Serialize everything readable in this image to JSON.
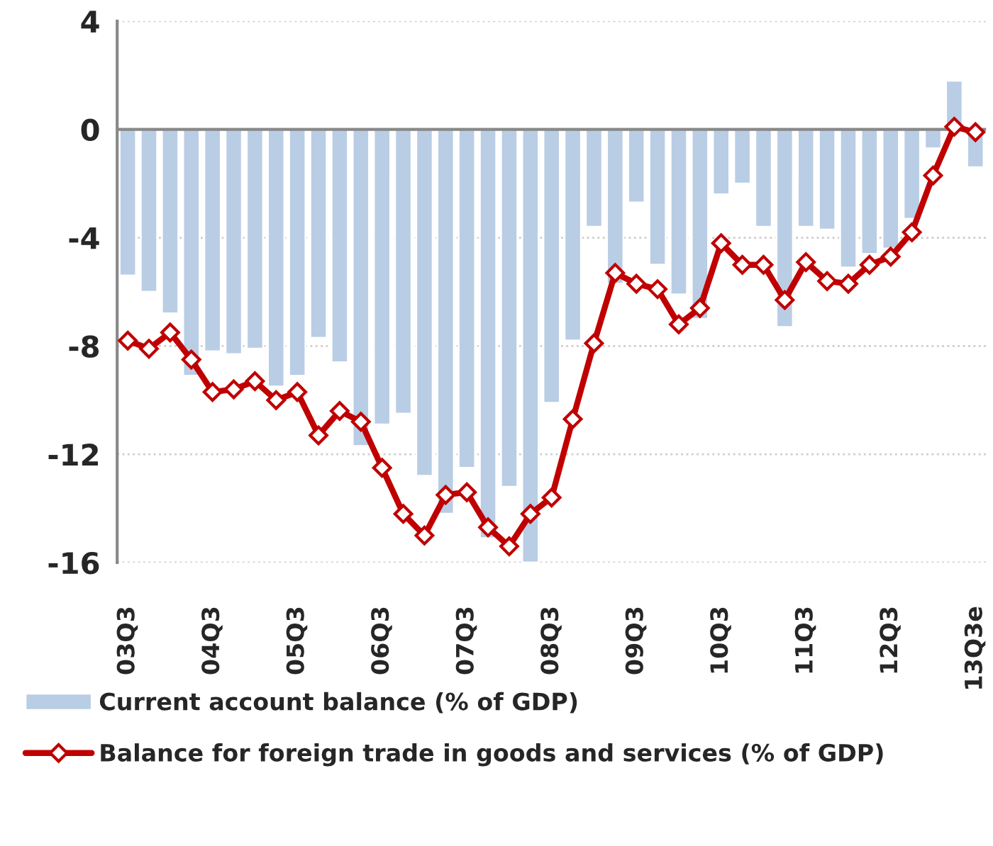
{
  "chart_data": {
    "type": "bar",
    "categories": [
      "03Q3",
      null,
      null,
      null,
      "04Q3",
      null,
      null,
      null,
      "05Q3",
      null,
      null,
      null,
      "06Q3",
      null,
      null,
      null,
      "07Q3",
      null,
      null,
      null,
      "08Q3",
      null,
      null,
      null,
      "09Q3",
      null,
      null,
      null,
      "10Q3",
      null,
      null,
      null,
      "11Q3",
      null,
      null,
      null,
      "12Q3",
      null,
      null,
      null,
      "13Q3e"
    ],
    "series": [
      {
        "name": "Current account balance (% of GDP)",
        "color": "#b9cde5",
        "values": [
          -5.4,
          -6.0,
          -6.8,
          -9.1,
          -8.2,
          -8.3,
          -8.1,
          -9.5,
          -9.1,
          -7.7,
          -8.6,
          -11.7,
          -10.9,
          -10.5,
          -12.8,
          -14.2,
          -12.5,
          -15.1,
          -13.2,
          -16.0,
          -10.1,
          -7.8,
          -3.6,
          -5.7,
          -2.7,
          -5.0,
          -6.1,
          -7.0,
          -2.4,
          -2.0,
          -3.6,
          -7.3,
          -3.6,
          -3.7,
          -5.1,
          -4.6,
          -4.4,
          -3.3,
          -0.7,
          1.8,
          -1.4
        ]
      },
      {
        "name": "Balance for foreign trade in goods and services (% of GDP)",
        "type": "line",
        "color": "#c00000",
        "marker": "diamond",
        "values": [
          -7.8,
          -8.1,
          -7.5,
          -8.5,
          -9.7,
          -9.6,
          -9.3,
          -10.0,
          -9.7,
          -11.3,
          -10.4,
          -10.8,
          -12.5,
          -14.2,
          -15.0,
          -13.5,
          -13.4,
          -14.7,
          -15.4,
          -14.2,
          -13.6,
          -10.7,
          -7.9,
          -5.3,
          -5.7,
          -5.9,
          -7.2,
          -6.6,
          -4.2,
          -5.0,
          -5.0,
          -6.3,
          -4.9,
          -5.6,
          -5.7,
          -5.0,
          -4.7,
          -3.8,
          -1.7,
          0.1,
          -0.1
        ]
      }
    ],
    "ylim": [
      -16,
      4
    ],
    "yticks": [
      {
        "value": -16,
        "label": "-16"
      },
      {
        "value": -12,
        "label": "-12"
      },
      {
        "value": -8,
        "label": "-8"
      },
      {
        "value": -4,
        "label": "-4"
      },
      0,
      4
    ],
    "grid": "y",
    "legend": "bottom"
  }
}
